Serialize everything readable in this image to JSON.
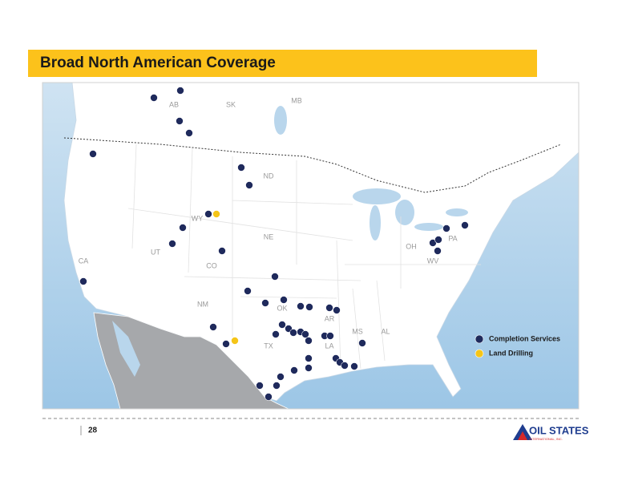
{
  "header": {
    "title": "Broad North American Coverage"
  },
  "map": {
    "region_labels": [
      "AB",
      "SK",
      "MB",
      "ND",
      "WY",
      "NE",
      "UT",
      "CO",
      "CA",
      "NM",
      "OK",
      "AR",
      "TX",
      "LA",
      "MS",
      "AL",
      "OH",
      "PA",
      "WV"
    ],
    "legend": [
      {
        "label": "Completion Services",
        "color": "#1f2a5c"
      },
      {
        "label": "Land Drilling",
        "color": "#f5c518"
      }
    ]
  },
  "footer": {
    "page_number": "28",
    "logo": {
      "name": "OIL STATES",
      "subtitle": "INTERNATIONAL, INC."
    }
  }
}
